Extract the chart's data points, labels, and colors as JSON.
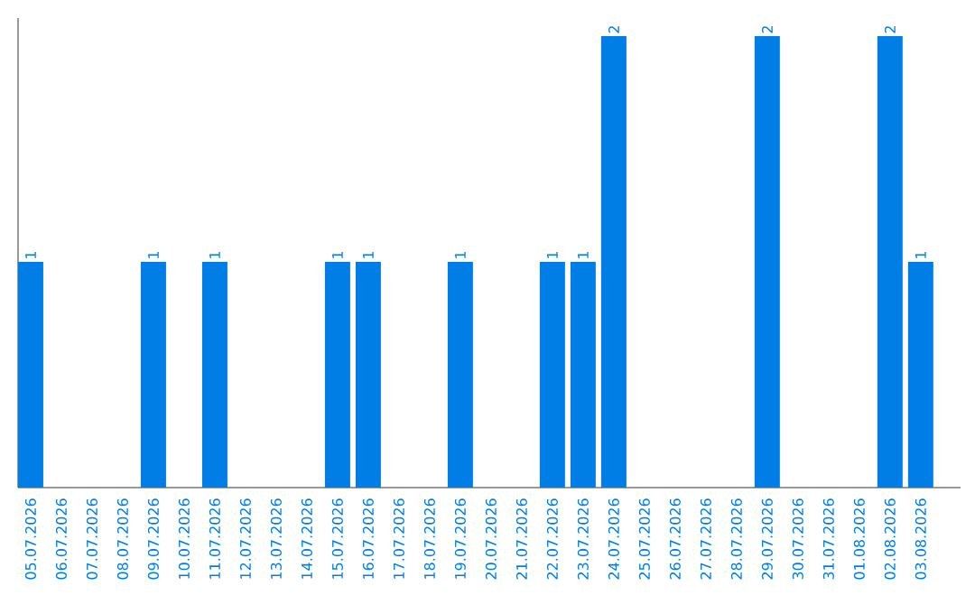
{
  "chart_data": {
    "type": "bar",
    "color": "#007ee5",
    "categories": [
      "05.07.2026",
      "06.07.2026",
      "07.07.2026",
      "08.07.2026",
      "09.07.2026",
      "10.07.2026",
      "11.07.2026",
      "12.07.2026",
      "13.07.2026",
      "14.07.2026",
      "15.07.2026",
      "16.07.2026",
      "17.07.2026",
      "18.07.2026",
      "19.07.2026",
      "20.07.2026",
      "21.07.2026",
      "22.07.2026",
      "23.07.2026",
      "24.07.2026",
      "25.07.2026",
      "26.07.2026",
      "27.07.2026",
      "28.07.2026",
      "29.07.2026",
      "30.07.2026",
      "31.07.2026",
      "01.08.2026",
      "02.08.2026",
      "03.08.2026"
    ],
    "values": [
      1,
      0,
      0,
      0,
      1,
      0,
      1,
      0,
      0,
      0,
      1,
      1,
      0,
      0,
      1,
      0,
      0,
      1,
      1,
      2,
      0,
      0,
      0,
      0,
      2,
      0,
      0,
      0,
      2,
      1
    ],
    "value_labels": [
      "1",
      null,
      null,
      null,
      "1",
      null,
      "1",
      null,
      null,
      null,
      "1",
      "1",
      null,
      null,
      "1",
      null,
      null,
      "1",
      "1",
      "2",
      null,
      null,
      null,
      null,
      "2",
      null,
      null,
      null,
      "2",
      "1"
    ],
    "grid": false
  }
}
